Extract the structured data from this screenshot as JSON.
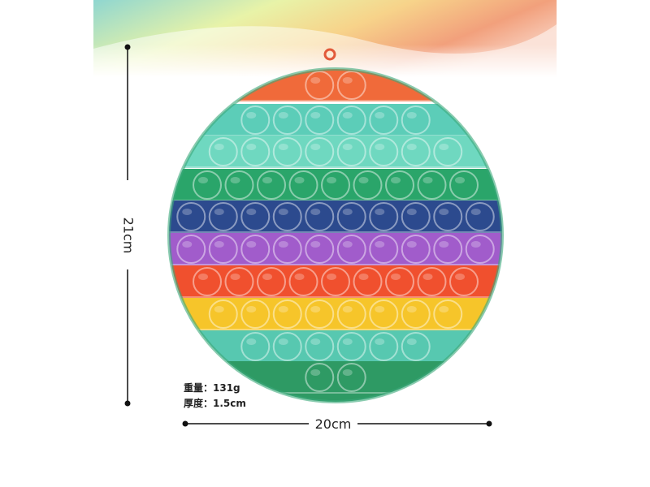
{
  "labels": {
    "height": "21cm",
    "width": "20cm",
    "weight": "重量：131g",
    "thickness": "厚度：1.5cm"
  }
}
